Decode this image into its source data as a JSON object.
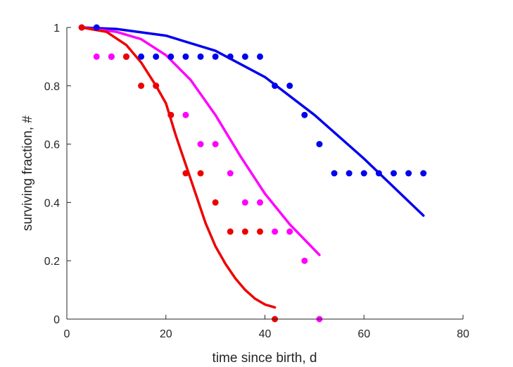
{
  "chart_data": {
    "type": "scatter",
    "title": "",
    "xlabel": "time since birth, d",
    "ylabel": "surviving fraction, #",
    "xlim": [
      0,
      80
    ],
    "ylim": [
      0,
      1
    ],
    "xticks": [
      0,
      20,
      40,
      60,
      80
    ],
    "yticks": [
      0,
      0.2,
      0.4,
      0.6,
      0.8,
      1
    ],
    "grid": false,
    "legend": "none",
    "series": [
      {
        "color": "#0000ee",
        "points": [
          [
            3,
            1
          ],
          [
            6,
            1
          ],
          [
            9,
            0.9
          ],
          [
            12,
            0.9
          ],
          [
            15,
            0.9
          ],
          [
            18,
            0.9
          ],
          [
            21,
            0.9
          ],
          [
            24,
            0.9
          ],
          [
            27,
            0.9
          ],
          [
            30,
            0.9
          ],
          [
            33,
            0.9
          ],
          [
            36,
            0.9
          ],
          [
            39,
            0.9
          ],
          [
            42,
            0.8
          ],
          [
            45,
            0.8
          ],
          [
            48,
            0.7
          ],
          [
            51,
            0.6
          ],
          [
            54,
            0.5
          ],
          [
            57,
            0.5
          ],
          [
            60,
            0.5
          ],
          [
            63,
            0.5
          ],
          [
            66,
            0.5
          ],
          [
            69,
            0.5
          ],
          [
            72,
            0.5
          ]
        ],
        "fit": [
          [
            3,
            1
          ],
          [
            10,
            0.995
          ],
          [
            20,
            0.972
          ],
          [
            30,
            0.92
          ],
          [
            40,
            0.83
          ],
          [
            50,
            0.7
          ],
          [
            60,
            0.55
          ],
          [
            72,
            0.355
          ]
        ]
      },
      {
        "color": "#ff00ff",
        "points": [
          [
            6,
            0.9
          ],
          [
            9,
            0.9
          ],
          [
            12,
            0.9
          ],
          [
            18,
            0.8
          ],
          [
            21,
            0.7
          ],
          [
            24,
            0.7
          ],
          [
            27,
            0.6
          ],
          [
            30,
            0.6
          ],
          [
            33,
            0.5
          ],
          [
            36,
            0.4
          ],
          [
            39,
            0.4
          ],
          [
            42,
            0.3
          ],
          [
            45,
            0.3
          ],
          [
            48,
            0.2
          ],
          [
            51,
            0
          ]
        ],
        "fit": [
          [
            3,
            1
          ],
          [
            10,
            0.985
          ],
          [
            15,
            0.96
          ],
          [
            20,
            0.905
          ],
          [
            25,
            0.82
          ],
          [
            30,
            0.7
          ],
          [
            35,
            0.56
          ],
          [
            40,
            0.43
          ],
          [
            45,
            0.325
          ],
          [
            51,
            0.22
          ]
        ]
      },
      {
        "color": "#ee0000",
        "points": [
          [
            3,
            1
          ],
          [
            12,
            0.9
          ],
          [
            15,
            0.8
          ],
          [
            18,
            0.8
          ],
          [
            21,
            0.7
          ],
          [
            24,
            0.5
          ],
          [
            27,
            0.5
          ],
          [
            30,
            0.4
          ],
          [
            33,
            0.3
          ],
          [
            36,
            0.3
          ],
          [
            39,
            0.3
          ],
          [
            42,
            0
          ]
        ],
        "fit": [
          [
            3,
            1
          ],
          [
            8,
            0.985
          ],
          [
            12,
            0.94
          ],
          [
            15,
            0.88
          ],
          [
            18,
            0.8
          ],
          [
            20,
            0.74
          ],
          [
            22,
            0.63
          ],
          [
            24,
            0.53
          ],
          [
            26,
            0.43
          ],
          [
            28,
            0.33
          ],
          [
            30,
            0.25
          ],
          [
            32,
            0.19
          ],
          [
            34,
            0.14
          ],
          [
            36,
            0.1
          ],
          [
            38,
            0.07
          ],
          [
            40,
            0.05
          ],
          [
            42,
            0.04
          ]
        ]
      }
    ]
  }
}
